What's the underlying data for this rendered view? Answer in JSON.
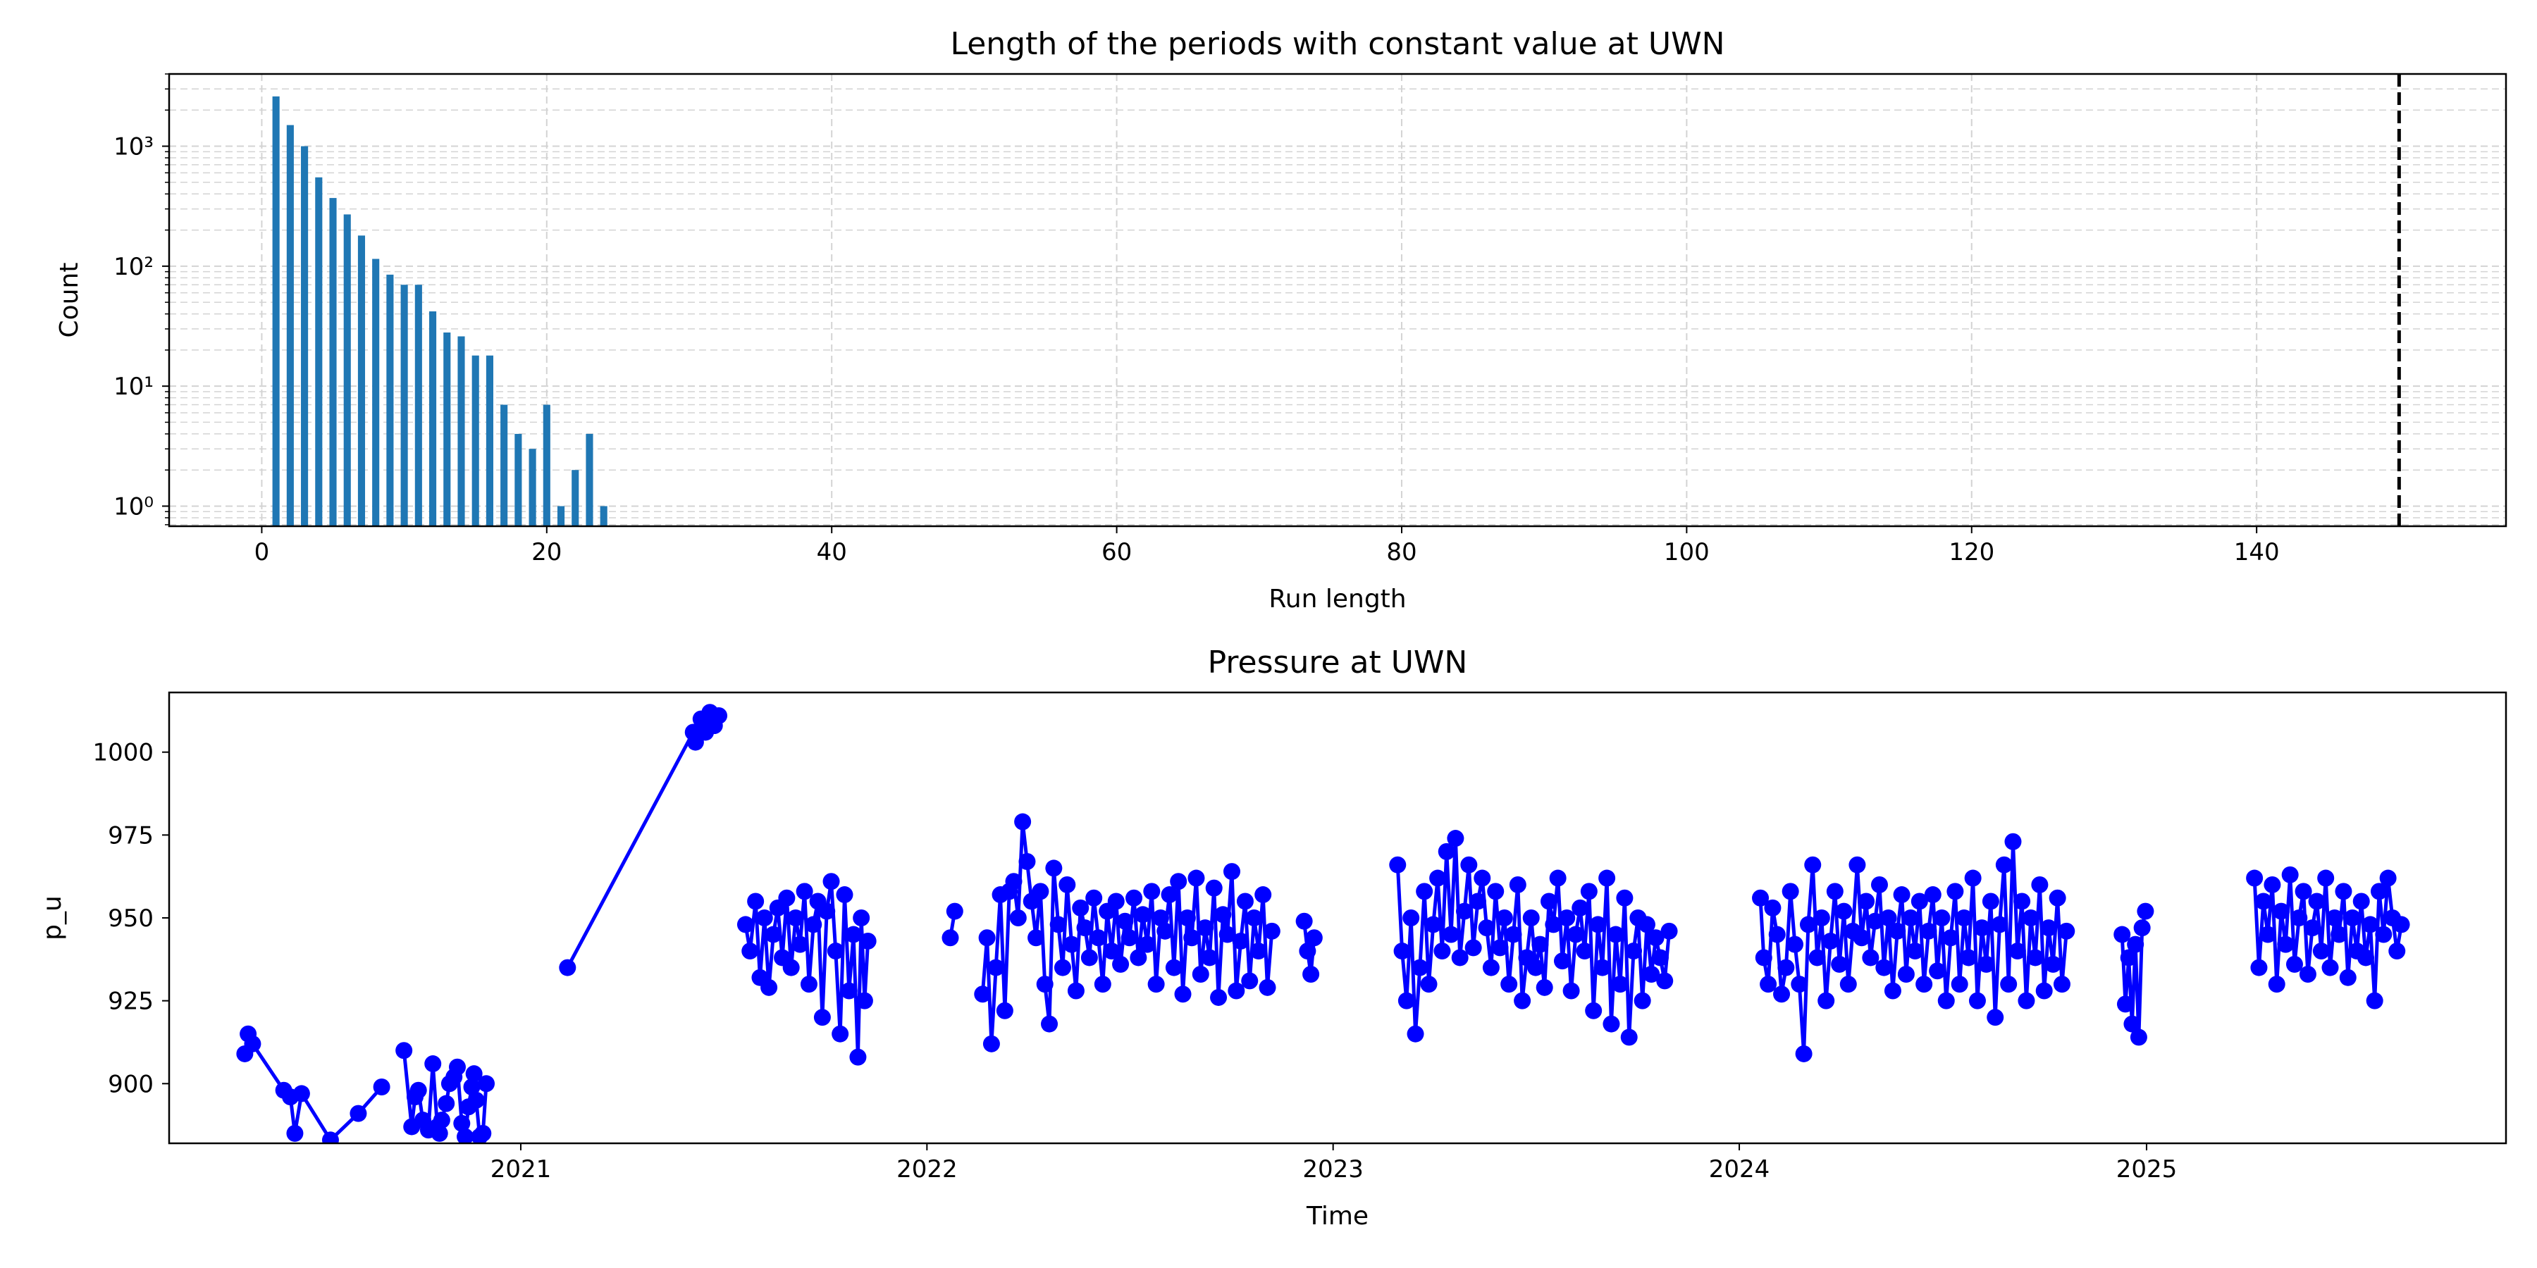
{
  "chart_data": [
    {
      "type": "bar",
      "title": "Length of the periods with constant value at UWN",
      "xlabel": "Run length",
      "ylabel": "Count",
      "yscale": "log",
      "xlim": [
        -6.5,
        157.5
      ],
      "ylim": [
        0.68,
        4000
      ],
      "xticks": [
        0,
        20,
        40,
        60,
        80,
        100,
        120,
        140
      ],
      "xtick_labels": [
        "0",
        "20",
        "40",
        "60",
        "80",
        "100",
        "120",
        "140"
      ],
      "yticks": [
        1,
        10,
        100,
        1000
      ],
      "ytick_labels": [
        "10⁰",
        "10¹",
        "10²",
        "10³"
      ],
      "grid": true,
      "bar_color": "#1f77b4",
      "threshold_line": {
        "x": 150,
        "style": "dashed",
        "color": "#000000"
      },
      "x": [
        1,
        2,
        3,
        4,
        5,
        6,
        7,
        8,
        9,
        10,
        11,
        12,
        13,
        14,
        15,
        16,
        17,
        18,
        19,
        20,
        21,
        22,
        23,
        24
      ],
      "values": [
        2600,
        1500,
        1000,
        550,
        370,
        270,
        180,
        115,
        85,
        70,
        70,
        42,
        28,
        26,
        18,
        18,
        7,
        4,
        3,
        7,
        1,
        2,
        4,
        1
      ]
    },
    {
      "type": "line",
      "title": "Pressure at UWN",
      "xlabel": "Time",
      "ylabel": "p_u",
      "xlim": [
        "2020-02-20",
        "2025-11-20"
      ],
      "ylim": [
        882,
        1018
      ],
      "xticks": [
        "2021-01-01",
        "2022-01-01",
        "2023-01-01",
        "2024-01-01",
        "2025-01-01"
      ],
      "xtick_labels": [
        "2021",
        "2022",
        "2023",
        "2024",
        "2025"
      ],
      "yticks": [
        900,
        925,
        950,
        975,
        1000
      ],
      "ytick_labels": [
        "900",
        "925",
        "950",
        "975",
        "1000"
      ],
      "grid": false,
      "color": "#0000ff",
      "marker": "circle",
      "series": [
        {
          "x": [
            "2020-04-28",
            "2020-05-01",
            "2020-05-05",
            "2020-06-02",
            "2020-06-08",
            "2020-06-12",
            "2020-06-18",
            "2020-07-14",
            "2020-08-08",
            "2020-08-29"
          ],
          "values": [
            909,
            915,
            912,
            898,
            896,
            885,
            897,
            883,
            891,
            899
          ]
        },
        {
          "x": [
            "2020-09-18",
            "2020-09-25",
            "2020-09-28",
            "2020-10-01",
            "2020-10-05",
            "2020-10-10",
            "2020-10-14",
            "2020-10-18",
            "2020-10-20",
            "2020-10-22",
            "2020-10-26",
            "2020-10-29",
            "2020-11-02",
            "2020-11-05",
            "2020-11-09",
            "2020-11-12",
            "2020-11-15",
            "2020-11-18",
            "2020-11-20",
            "2020-11-22",
            "2020-11-25",
            "2020-11-28",
            "2020-12-01"
          ],
          "values": [
            910,
            887,
            896,
            898,
            889,
            886,
            906,
            887,
            885,
            889,
            894,
            900,
            902,
            905,
            888,
            884,
            893,
            899,
            903,
            895,
            884,
            885,
            900
          ]
        },
        {
          "x": [
            "2021-02-12",
            "2021-06-05"
          ],
          "values": [
            935,
            1006
          ]
        },
        {
          "x": [
            "2021-06-07",
            "2021-06-12",
            "2021-06-16",
            "2021-06-20",
            "2021-06-24",
            "2021-06-28"
          ],
          "values": [
            1003,
            1010,
            1006,
            1012,
            1008,
            1011
          ]
        },
        {
          "x": [
            "2021-07-22",
            "2021-07-26",
            "2021-07-31",
            "2021-08-04",
            "2021-08-08",
            "2021-08-12",
            "2021-08-16",
            "2021-08-20",
            "2021-08-24",
            "2021-08-28",
            "2021-09-01",
            "2021-09-05",
            "2021-09-09",
            "2021-09-13",
            "2021-09-17",
            "2021-09-21",
            "2021-09-25",
            "2021-09-29",
            "2021-10-03",
            "2021-10-07",
            "2021-10-11",
            "2021-10-15",
            "2021-10-19",
            "2021-10-23",
            "2021-10-27",
            "2021-10-31",
            "2021-11-03",
            "2021-11-06",
            "2021-11-09"
          ],
          "values": [
            948,
            940,
            955,
            932,
            950,
            929,
            945,
            953,
            938,
            956,
            935,
            950,
            942,
            958,
            930,
            948,
            955,
            920,
            952,
            961,
            940,
            915,
            957,
            928,
            945,
            908,
            950,
            925,
            943
          ]
        },
        {
          "x": [
            "2022-01-22",
            "2022-01-26"
          ],
          "values": [
            944,
            952
          ]
        },
        {
          "x": [
            "2022-02-20",
            "2022-02-24",
            "2022-02-28",
            "2022-03-04",
            "2022-03-08",
            "2022-03-12",
            "2022-03-16",
            "2022-03-20",
            "2022-03-24",
            "2022-03-28",
            "2022-04-01",
            "2022-04-05",
            "2022-04-09",
            "2022-04-13",
            "2022-04-17",
            "2022-04-21",
            "2022-04-25",
            "2022-04-29",
            "2022-05-03",
            "2022-05-07",
            "2022-05-11",
            "2022-05-15",
            "2022-05-19",
            "2022-05-23",
            "2022-05-27",
            "2022-05-31",
            "2022-06-04",
            "2022-06-08",
            "2022-06-12",
            "2022-06-16",
            "2022-06-20",
            "2022-06-24",
            "2022-06-28",
            "2022-07-02",
            "2022-07-06",
            "2022-07-10",
            "2022-07-14",
            "2022-07-18",
            "2022-07-22",
            "2022-07-26",
            "2022-07-30",
            "2022-08-03",
            "2022-08-07",
            "2022-08-11",
            "2022-08-15",
            "2022-08-19",
            "2022-08-23",
            "2022-08-27",
            "2022-08-31",
            "2022-09-04",
            "2022-09-08",
            "2022-09-12",
            "2022-09-16",
            "2022-09-20",
            "2022-09-24",
            "2022-09-28",
            "2022-10-02",
            "2022-10-06",
            "2022-10-10",
            "2022-10-14",
            "2022-10-18",
            "2022-10-22",
            "2022-10-26",
            "2022-10-30",
            "2022-11-03",
            "2022-11-07"
          ],
          "values": [
            927,
            944,
            912,
            935,
            957,
            922,
            958,
            961,
            950,
            979,
            967,
            955,
            944,
            958,
            930,
            918,
            965,
            948,
            935,
            960,
            942,
            928,
            953,
            947,
            938,
            956,
            944,
            930,
            952,
            940,
            955,
            936,
            949,
            944,
            956,
            938,
            951,
            942,
            958,
            930,
            950,
            946,
            957,
            935,
            961,
            927,
            950,
            944,
            962,
            933,
            947,
            938,
            959,
            926,
            951,
            945,
            964,
            928,
            943,
            955,
            931,
            950,
            940,
            957,
            929,
            946
          ]
        },
        {
          "x": [
            "2022-12-06",
            "2022-12-09",
            "2022-12-12",
            "2022-12-15"
          ],
          "values": [
            949,
            940,
            933,
            944
          ]
        },
        {
          "x": [
            "2023-02-28",
            "2023-03-04",
            "2023-03-08",
            "2023-03-12",
            "2023-03-16",
            "2023-03-20",
            "2023-03-24",
            "2023-03-28",
            "2023-04-01",
            "2023-04-05",
            "2023-04-09",
            "2023-04-13",
            "2023-04-17",
            "2023-04-21",
            "2023-04-25",
            "2023-04-29",
            "2023-05-03",
            "2023-05-07",
            "2023-05-11",
            "2023-05-15",
            "2023-05-19",
            "2023-05-23",
            "2023-05-27",
            "2023-05-31",
            "2023-06-04",
            "2023-06-08",
            "2023-06-12",
            "2023-06-16",
            "2023-06-20",
            "2023-06-24",
            "2023-06-28",
            "2023-07-02",
            "2023-07-06",
            "2023-07-10",
            "2023-07-14",
            "2023-07-18",
            "2023-07-22",
            "2023-07-26",
            "2023-07-30",
            "2023-08-03",
            "2023-08-07",
            "2023-08-11",
            "2023-08-15",
            "2023-08-19",
            "2023-08-23",
            "2023-08-27",
            "2023-08-31",
            "2023-09-04",
            "2023-09-08",
            "2023-09-12",
            "2023-09-16",
            "2023-09-20",
            "2023-09-24",
            "2023-09-28",
            "2023-10-02",
            "2023-10-06",
            "2023-10-10",
            "2023-10-14",
            "2023-10-18",
            "2023-10-22",
            "2023-10-26",
            "2023-10-30"
          ],
          "values": [
            966,
            940,
            925,
            950,
            915,
            935,
            958,
            930,
            948,
            962,
            940,
            970,
            945,
            974,
            938,
            952,
            966,
            941,
            955,
            962,
            947,
            935,
            958,
            941,
            950,
            930,
            945,
            960,
            925,
            938,
            950,
            935,
            942,
            929,
            955,
            948,
            962,
            937,
            950,
            928,
            945,
            953,
            940,
            958,
            922,
            948,
            935,
            962,
            918,
            945,
            930,
            956,
            914,
            940,
            950,
            925,
            948,
            933,
            944,
            938,
            931,
            946
          ]
        },
        {
          "x": [
            "2024-01-20",
            "2024-01-23",
            "2024-01-27",
            "2024-01-31",
            "2024-02-04",
            "2024-02-08",
            "2024-02-12",
            "2024-02-16",
            "2024-02-20",
            "2024-02-24",
            "2024-02-28",
            "2024-03-03",
            "2024-03-07",
            "2024-03-11",
            "2024-03-15",
            "2024-03-19",
            "2024-03-23",
            "2024-03-27",
            "2024-03-31",
            "2024-04-04",
            "2024-04-08",
            "2024-04-12",
            "2024-04-16",
            "2024-04-20",
            "2024-04-24",
            "2024-04-28",
            "2024-05-02",
            "2024-05-06",
            "2024-05-10",
            "2024-05-14",
            "2024-05-18",
            "2024-05-22",
            "2024-05-26",
            "2024-05-30",
            "2024-06-03",
            "2024-06-07",
            "2024-06-11",
            "2024-06-15",
            "2024-06-19",
            "2024-06-23",
            "2024-06-27",
            "2024-07-01",
            "2024-07-05",
            "2024-07-09",
            "2024-07-13",
            "2024-07-17",
            "2024-07-21",
            "2024-07-25",
            "2024-07-29",
            "2024-08-02",
            "2024-08-06",
            "2024-08-10",
            "2024-08-14",
            "2024-08-18",
            "2024-08-22",
            "2024-08-26",
            "2024-08-30",
            "2024-09-03",
            "2024-09-07",
            "2024-09-11",
            "2024-09-15",
            "2024-09-19",
            "2024-09-23",
            "2024-09-27",
            "2024-10-01",
            "2024-10-05",
            "2024-10-09",
            "2024-10-13",
            "2024-10-17",
            "2024-10-21"
          ],
          "values": [
            956,
            938,
            930,
            953,
            945,
            927,
            935,
            958,
            942,
            930,
            909,
            948,
            966,
            938,
            950,
            925,
            943,
            958,
            936,
            952,
            930,
            946,
            966,
            944,
            955,
            938,
            949,
            960,
            935,
            950,
            928,
            946,
            957,
            933,
            950,
            940,
            955,
            930,
            946,
            957,
            934,
            950,
            925,
            944,
            958,
            930,
            950,
            938,
            962,
            925,
            947,
            936,
            955,
            920,
            948,
            966,
            930,
            973,
            940,
            955,
            925,
            950,
            938,
            960,
            928,
            947,
            936,
            956,
            930,
            946
          ]
        },
        {
          "x": [
            "2024-12-10",
            "2024-12-13",
            "2024-12-16",
            "2024-12-19",
            "2024-12-22",
            "2024-12-25",
            "2024-12-28",
            "2024-12-31"
          ],
          "values": [
            945,
            924,
            938,
            918,
            942,
            914,
            947,
            952
          ]
        },
        {
          "x": [
            "2025-04-08",
            "2025-04-12",
            "2025-04-16",
            "2025-04-20",
            "2025-04-24",
            "2025-04-28",
            "2025-05-02",
            "2025-05-06",
            "2025-05-10",
            "2025-05-14",
            "2025-05-18",
            "2025-05-22",
            "2025-05-26",
            "2025-05-30",
            "2025-06-03",
            "2025-06-07",
            "2025-06-11",
            "2025-06-15",
            "2025-06-19",
            "2025-06-23",
            "2025-06-27",
            "2025-07-01",
            "2025-07-05",
            "2025-07-09",
            "2025-07-13",
            "2025-07-17",
            "2025-07-21",
            "2025-07-25",
            "2025-07-29",
            "2025-08-02",
            "2025-08-06",
            "2025-08-10",
            "2025-08-14",
            "2025-08-18"
          ],
          "values": [
            962,
            935,
            955,
            945,
            960,
            930,
            952,
            942,
            963,
            936,
            950,
            958,
            933,
            947,
            955,
            940,
            962,
            935,
            950,
            945,
            958,
            932,
            950,
            940,
            955,
            938,
            948,
            925,
            958,
            945,
            962,
            950,
            940,
            948
          ]
        }
      ]
    }
  ]
}
